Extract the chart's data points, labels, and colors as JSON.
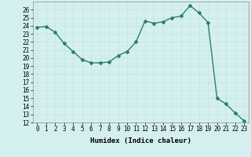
{
  "x": [
    0,
    1,
    2,
    3,
    4,
    5,
    6,
    7,
    8,
    9,
    10,
    11,
    12,
    13,
    14,
    15,
    16,
    17,
    18,
    19,
    20,
    21,
    22,
    23
  ],
  "y": [
    23.8,
    23.9,
    23.2,
    21.8,
    20.8,
    19.8,
    19.4,
    19.4,
    19.5,
    20.3,
    20.8,
    22.0,
    24.6,
    24.3,
    24.5,
    25.0,
    25.2,
    26.5,
    25.6,
    24.4,
    15.0,
    14.3,
    13.2,
    12.2
  ],
  "line_color": "#2e7d6e",
  "marker": "D",
  "marker_size": 2.0,
  "line_width": 1.0,
  "xlabel": "Humidex (Indice chaleur)",
  "xlim": [
    -0.5,
    23.5
  ],
  "ylim": [
    12,
    27
  ],
  "yticks": [
    12,
    13,
    14,
    15,
    16,
    17,
    18,
    19,
    20,
    21,
    22,
    23,
    24,
    25,
    26
  ],
  "xticks": [
    0,
    1,
    2,
    3,
    4,
    5,
    6,
    7,
    8,
    9,
    10,
    11,
    12,
    13,
    14,
    15,
    16,
    17,
    18,
    19,
    20,
    21,
    22,
    23
  ],
  "xtick_labels": [
    "0",
    "1",
    "2",
    "3",
    "4",
    "5",
    "6",
    "7",
    "8",
    "9",
    "10",
    "11",
    "12",
    "13",
    "14",
    "15",
    "16",
    "17",
    "18",
    "19",
    "20",
    "21",
    "22",
    "23"
  ],
  "background_color": "#d4f0ee",
  "grid_color": "#c4e4e0",
  "tick_fontsize": 5.5,
  "label_fontsize": 6.5
}
